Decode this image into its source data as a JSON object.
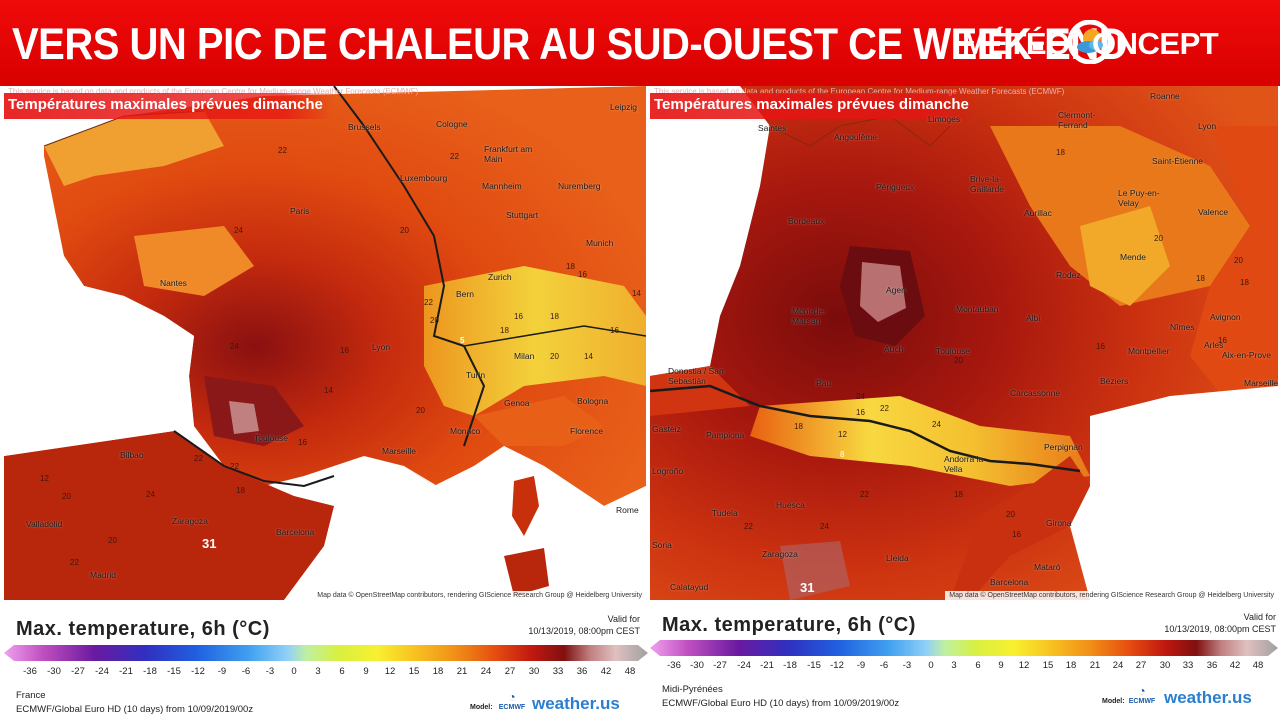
{
  "header": {
    "headline": "VERS UN PIC DE CHALEUR  AU SUD-OUEST CE WEEK-END",
    "logo_meteo": "MÉTÉO",
    "logo_concept": "ONCEPT",
    "colors": {
      "banner": "#e60000",
      "logo_sun": "#f5a623",
      "logo_cloud": "#3a9ad9"
    }
  },
  "panels": [
    {
      "caption": "Températures maximales prévues dimanche",
      "service_note": "This service is based on data and products of the European Centre for Medium-range Weather Forecasts (ECMWF)",
      "attribution": "Map data © OpenStreetMap contributors, rendering GIScience Research Group @ Heidelberg University",
      "cities": [
        "Leipzig",
        "Brussels",
        "Cologne",
        "Frankfurt am Main",
        "Luxembourg",
        "Mannheim",
        "Nuremberg",
        "Paris",
        "Stuttgart",
        "Munich",
        "Nantes",
        "Zurich",
        "Bern",
        "Lyon",
        "Milan",
        "Turin",
        "Genoa",
        "Bologna",
        "Monaco",
        "Florence",
        "Toulouse",
        "Marseille",
        "Bilbao",
        "Valladolid",
        "Zaragoza",
        "Barcelona",
        "Madrid",
        "Rome"
      ],
      "isotherms": [
        "22",
        "22",
        "24",
        "20",
        "18",
        "16",
        "14",
        "16",
        "18",
        "22",
        "20",
        "18",
        "16",
        "20",
        "14",
        "16",
        "5",
        "24",
        "14",
        "16",
        "20",
        "22",
        "18",
        "22",
        "12",
        "20",
        "24",
        "22",
        "20"
      ],
      "peak_value": "31"
    },
    {
      "caption": "Températures maximales prévues dimanche",
      "service_note": "This service is based on data and products of the European Centre for Medium-range Weather Forecasts (ECMWF)",
      "attribution": "Map data © OpenStreetMap contributors, rendering GIScience Research Group @ Heidelberg University",
      "cities": [
        "Roanne",
        "Saintes",
        "Angoulême",
        "Limoges",
        "Clermont-Ferrand",
        "Lyon",
        "Périgueux",
        "Brive-la-Gaillarde",
        "Saint-Étienne",
        "Le Puy-en-Velay",
        "Bordeaux",
        "Aurillac",
        "Valence",
        "Mende",
        "Rodez",
        "Agen",
        "Mont-de-Marsan",
        "Montauban",
        "Albi",
        "Nîmes",
        "Avignon",
        "Arles",
        "Auch",
        "Montpellier",
        "Aix-en-Prove",
        "Toulouse",
        "Donostia / San Sebastián",
        "Pau",
        "Béziers",
        "Marseille",
        "Carcassonne",
        "Gasteiz",
        "Pamplona",
        "Perpignan",
        "Logroño",
        "Andorra la Vella",
        "Tudela",
        "Huesca",
        "Girona",
        "Soria",
        "Zaragoza",
        "Lleida",
        "Mataró",
        "Barcelona",
        "Calatayud"
      ],
      "isotherms": [
        "18",
        "20",
        "18",
        "16",
        "18",
        "20",
        "16",
        "22",
        "16",
        "18",
        "24",
        "12",
        "8",
        "24",
        "22",
        "18",
        "20",
        "22",
        "24",
        "20",
        "16"
      ],
      "peak_value": "31"
    }
  ],
  "legends": [
    {
      "title": "Max. temperature, 6h (°C)",
      "valid_label": "Valid for",
      "valid_time": "10/13/2019, 08:00pm CEST",
      "ticks": [
        "-36",
        "-30",
        "-27",
        "-24",
        "-21",
        "-18",
        "-15",
        "-12",
        "-9",
        "-6",
        "-3",
        "0",
        "3",
        "6",
        "9",
        "12",
        "15",
        "18",
        "21",
        "24",
        "27",
        "30",
        "33",
        "36",
        "42",
        "48"
      ],
      "region": "France",
      "model_run": "ECMWF/Global Euro HD (10 days) from 10/09/2019/00z",
      "model_tag": "Model:",
      "ecmwf_text": "ECMWF",
      "weather_brand": "weather.us"
    },
    {
      "title": "Max. temperature, 6h (°C)",
      "valid_label": "Valid for",
      "valid_time": "10/13/2019, 08:00pm CEST",
      "ticks": [
        "-36",
        "-30",
        "-27",
        "-24",
        "-21",
        "-18",
        "-15",
        "-12",
        "-9",
        "-6",
        "-3",
        "0",
        "3",
        "6",
        "9",
        "12",
        "15",
        "18",
        "21",
        "24",
        "27",
        "30",
        "33",
        "36",
        "42",
        "48"
      ],
      "region": "Midi-Pyrénées",
      "model_run": "ECMWF/Global Euro HD (10 days) from 10/09/2019/00z",
      "model_tag": "Model:",
      "ecmwf_text": "ECMWF",
      "weather_brand": "weather.us"
    }
  ]
}
